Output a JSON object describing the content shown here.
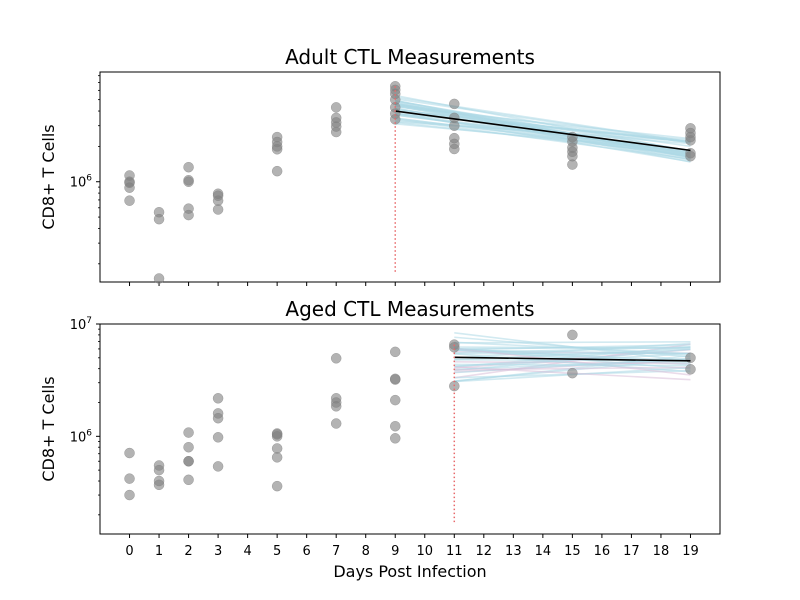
{
  "xlabel": "Days Post Infection",
  "x_ticks": [
    "0",
    "1",
    "2",
    "3",
    "4",
    "5",
    "6",
    "7",
    "8",
    "9",
    "10",
    "11",
    "12",
    "13",
    "14",
    "15",
    "16",
    "17",
    "18",
    "19"
  ],
  "colors": {
    "points": "#808080",
    "fit": "#000000",
    "samples": "#add8e6",
    "samples_alt": "#d8bfd8",
    "cutoff": "#e8696b"
  },
  "chart_data": [
    {
      "type": "scatter",
      "title": "Adult CTL Measurements",
      "xlabel": "",
      "ylabel": "CD8+ T Cells",
      "yscale": "log",
      "xlim": [
        -1,
        20
      ],
      "ylim": [
        140000,
        8600000
      ],
      "y_ticks": [
        {
          "base": "10",
          "exp": "6",
          "value": 1000000
        }
      ],
      "cutoff_day": 9,
      "series": [
        {
          "x": [
            0,
            0,
            0,
            0,
            0,
            1,
            1,
            1,
            2,
            2,
            2,
            2,
            2,
            3,
            3,
            3,
            3,
            5,
            5,
            5,
            5,
            5,
            7,
            7,
            7,
            7,
            7,
            9,
            9,
            9,
            9,
            9,
            9,
            9,
            11,
            11,
            11,
            11,
            11,
            11,
            15,
            15,
            15,
            15,
            15,
            15,
            19,
            19,
            19,
            19,
            19,
            19
          ],
          "y": [
            1130000,
            1000000,
            980000,
            890000,
            690000,
            550000,
            480000,
            150000,
            1330000,
            1030000,
            1000000,
            590000,
            520000,
            790000,
            760000,
            690000,
            580000,
            2400000,
            2180000,
            2000000,
            1890000,
            1230000,
            4300000,
            3500000,
            3200000,
            2950000,
            2650000,
            6500000,
            6050000,
            5600000,
            5000000,
            4300000,
            3800000,
            3400000,
            4600000,
            3500000,
            3000000,
            2350000,
            2100000,
            1900000,
            2400000,
            2200000,
            1950000,
            1800000,
            1650000,
            1400000,
            2850000,
            2600000,
            2400000,
            2250000,
            1750000,
            1650000
          ]
        }
      ],
      "fit": {
        "x": [
          9,
          19
        ],
        "y": [
          4000000,
          1850000
        ]
      }
    },
    {
      "type": "scatter",
      "title": "Aged CTL Measurements",
      "xlabel": "Days Post Infection",
      "ylabel": "CD8+ T Cells",
      "yscale": "log",
      "xlim": [
        -1,
        20
      ],
      "ylim": [
        135000,
        10000000
      ],
      "y_ticks": [
        {
          "base": "10",
          "exp": "6",
          "value": 1000000
        },
        {
          "base": "10",
          "exp": "7",
          "value": 10000000
        }
      ],
      "cutoff_day": 11,
      "series": [
        {
          "x": [
            0,
            0,
            0,
            1,
            1,
            1,
            1,
            2,
            2,
            2,
            2,
            2,
            3,
            3,
            3,
            3,
            3,
            5,
            5,
            5,
            5,
            5,
            5,
            7,
            7,
            7,
            7,
            7,
            9,
            9,
            9,
            9,
            9,
            9,
            11,
            11,
            11,
            15,
            15,
            19,
            19
          ],
          "y": [
            710000,
            420000,
            300000,
            550000,
            500000,
            400000,
            370000,
            1080000,
            800000,
            600000,
            410000,
            600000,
            2180000,
            1600000,
            1450000,
            980000,
            540000,
            1060000,
            1000000,
            780000,
            650000,
            360000,
            1040000,
            4950000,
            2180000,
            2000000,
            1850000,
            1300000,
            5650000,
            3250000,
            3200000,
            2100000,
            1230000,
            960000,
            6550000,
            6200000,
            2800000,
            8000000,
            3650000,
            5000000,
            3950000
          ]
        }
      ],
      "fit": {
        "x": [
          11,
          19
        ],
        "y": [
          5050000,
          4700000
        ]
      }
    }
  ]
}
